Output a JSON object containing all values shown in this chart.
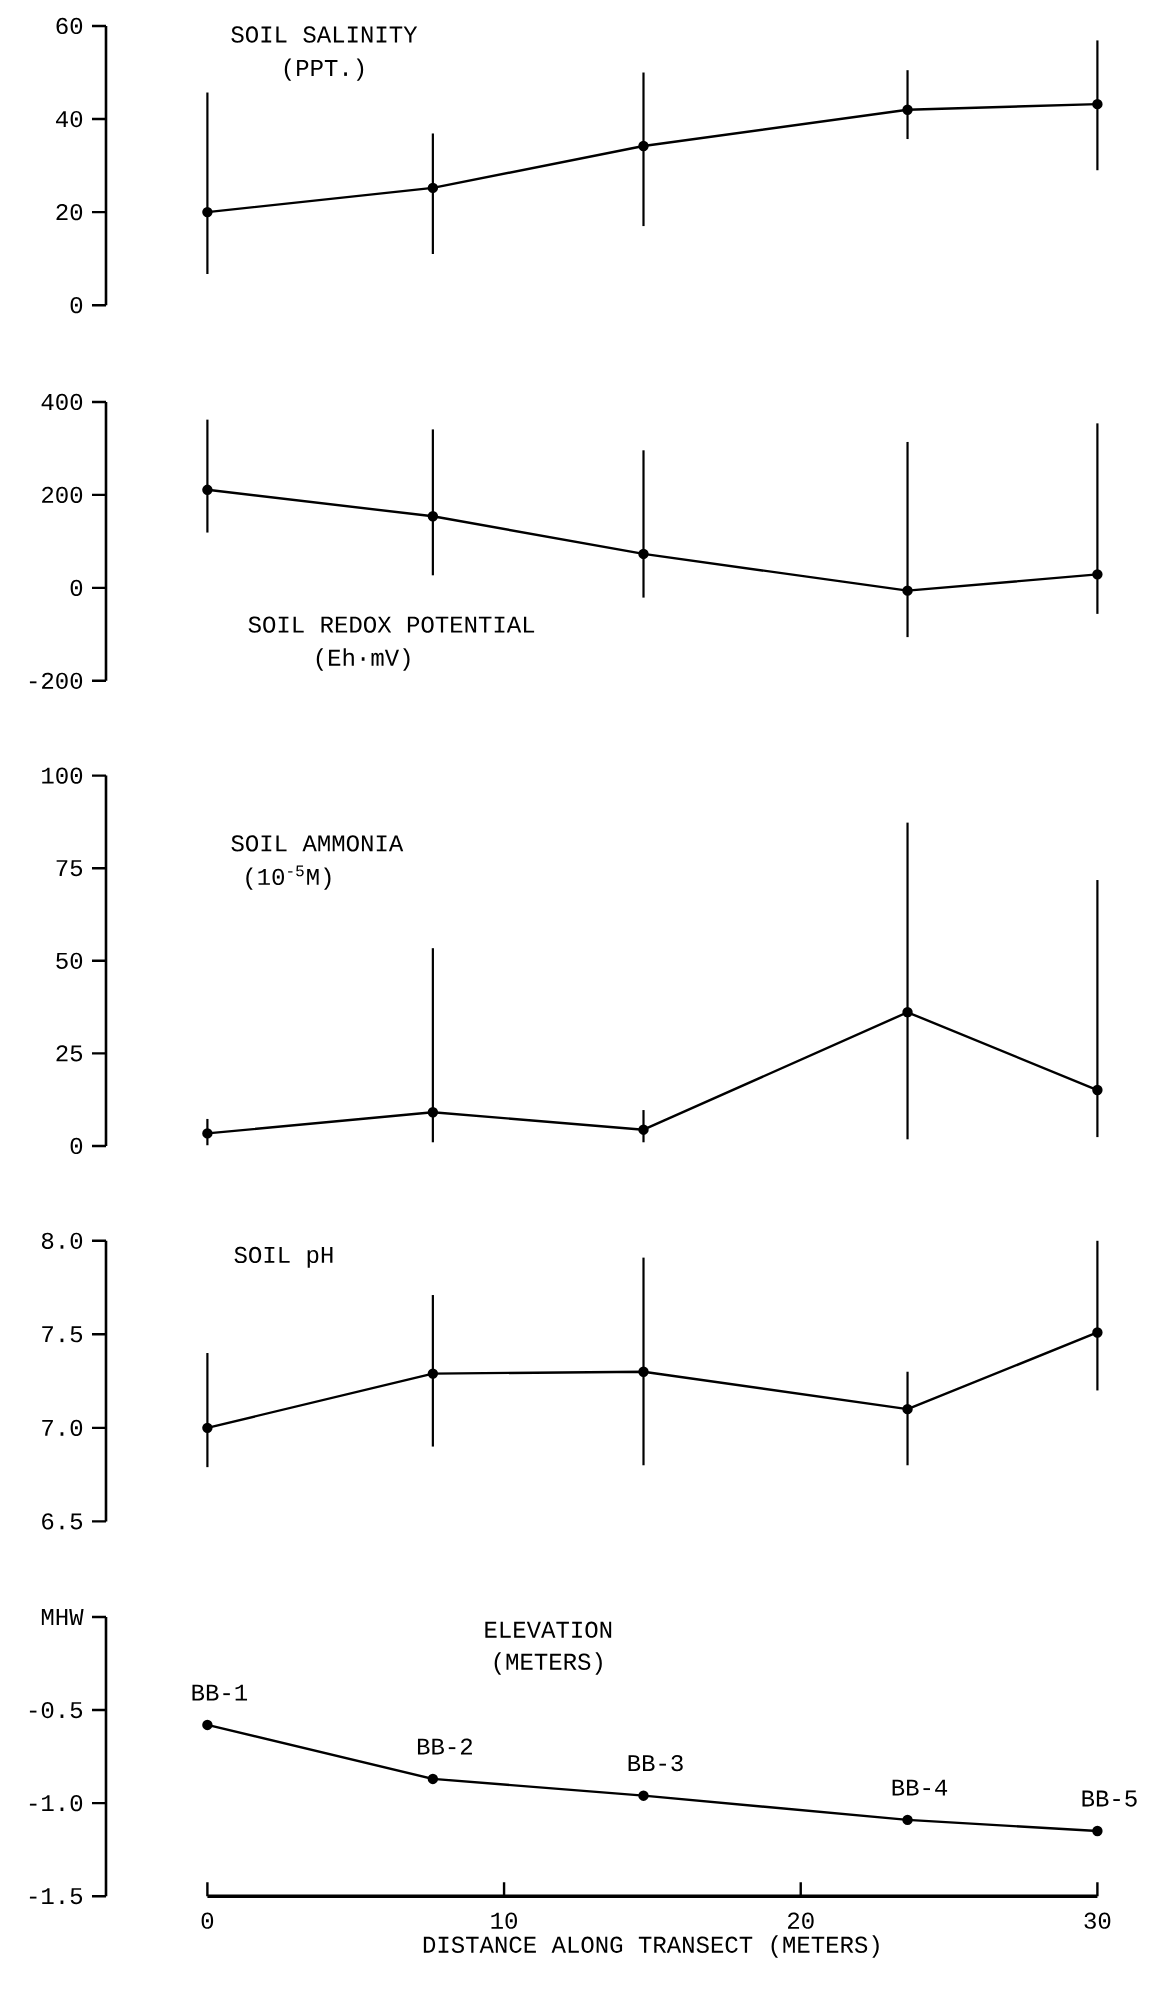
{
  "chart_data": [
    {
      "type": "line",
      "title": "SOIL SALINITY",
      "subtitle": "(PPT.)",
      "x": [
        0,
        7.6,
        14.7,
        23.6,
        30
      ],
      "xlim": [
        0,
        30
      ],
      "ylim": [
        0,
        60
      ],
      "yticks": [
        0,
        20,
        40,
        60
      ],
      "tick_labels": "y",
      "marker": "circle",
      "line_style": "solid",
      "series": [
        {
          "color": "#000000",
          "values": [
            20,
            25.2,
            34.2,
            42,
            43.2
          ],
          "errors": [
            [
              6.7,
              45.7
            ],
            [
              11,
              36.9
            ],
            [
              17,
              50
            ],
            [
              35.7,
              50.5
            ],
            [
              29,
              56.9
            ]
          ]
        }
      ]
    },
    {
      "type": "line",
      "title": "SOIL REDOX POTENTIAL",
      "subtitle": "(Eh·mV)",
      "x": [
        0,
        7.6,
        14.7,
        23.6,
        30
      ],
      "xlim": [
        0,
        30
      ],
      "ylim": [
        -200,
        400
      ],
      "yticks": [
        -200,
        0,
        200,
        400
      ],
      "tick_labels": "y",
      "marker": "circle",
      "line_style": "solid",
      "series": [
        {
          "color": "#000000",
          "values": [
            211,
            154,
            73,
            -6,
            29
          ],
          "errors": [
            [
              119,
              362
            ],
            [
              27,
              341
            ],
            [
              -21,
              296
            ],
            [
              -106,
              314
            ],
            [
              -56,
              354
            ]
          ]
        }
      ]
    },
    {
      "type": "line",
      "title": "SOIL AMMONIA",
      "subtitle": "(10$^{-5}$M)",
      "x": [
        0,
        7.6,
        14.7,
        23.6,
        30
      ],
      "xlim": [
        0,
        30
      ],
      "ylim": [
        0,
        100
      ],
      "yticks": [
        0,
        25,
        50,
        75,
        100
      ],
      "tick_labels": "y",
      "marker": "circle",
      "line_style": "solid",
      "series": [
        {
          "color": "#000000",
          "values": [
            3.4,
            9.1,
            4.4,
            36.1,
            15.1
          ],
          "errors": [
            [
              0.2,
              7.3
            ],
            [
              1,
              53.4
            ],
            [
              1,
              9.7
            ],
            [
              1.8,
              87.3
            ],
            [
              2.4,
              71.8
            ]
          ]
        }
      ]
    },
    {
      "type": "line",
      "title": "SOIL pH",
      "x": [
        0,
        7.6,
        14.7,
        23.6,
        30
      ],
      "xlim": [
        0,
        30
      ],
      "ylim": [
        6.5,
        8
      ],
      "yticks": [
        {
          "value": 6.5,
          "label": "6.5"
        },
        {
          "value": 7,
          "label": "7.0"
        },
        {
          "value": 7.5,
          "label": "7.5"
        },
        {
          "value": 8,
          "label": "8.0"
        }
      ],
      "tick_labels": "y",
      "marker": "circle",
      "line_style": "solid",
      "series": [
        {
          "color": "#000000",
          "values": [
            7.0,
            7.29,
            7.3,
            7.1,
            7.51
          ],
          "errors": [
            [
              6.79,
              7.4
            ],
            [
              6.9,
              7.71
            ],
            [
              6.8,
              7.91
            ],
            [
              6.8,
              7.3
            ],
            [
              7.2,
              8.0
            ]
          ]
        }
      ]
    },
    {
      "type": "line",
      "title": "ELEVATION",
      "subtitle": "(METERS)",
      "xlabel": "DISTANCE ALONG TRANSECT (METERS)",
      "x": [
        0,
        7.6,
        14.7,
        23.6,
        30
      ],
      "xlim": [
        0,
        30
      ],
      "xticks": [
        0,
        10,
        20,
        30
      ],
      "ylim": [
        -1.5,
        0
      ],
      "yticks": [
        {
          "value": -1.5,
          "label": "-1.5"
        },
        {
          "value": -1,
          "label": "-1.0"
        },
        -0.5,
        {
          "value": 0,
          "label": "MHW"
        }
      ],
      "marker": "circle",
      "line_style": "solid",
      "annotations": [
        {
          "text": "BB-1",
          "x": 0,
          "y": -0.58
        },
        {
          "text": "BB-2",
          "x": 7.6,
          "y": -0.87
        },
        {
          "text": "BB-3",
          "x": 14.7,
          "y": -0.96
        },
        {
          "text": "BB-4",
          "x": 23.6,
          "y": -1.09
        },
        {
          "text": "BB-5",
          "x": 30,
          "y": -1.15
        }
      ],
      "series": [
        {
          "color": "#000000",
          "values": [
            -0.58,
            -0.87,
            -0.96,
            -1.09,
            -1.15
          ]
        }
      ]
    }
  ]
}
